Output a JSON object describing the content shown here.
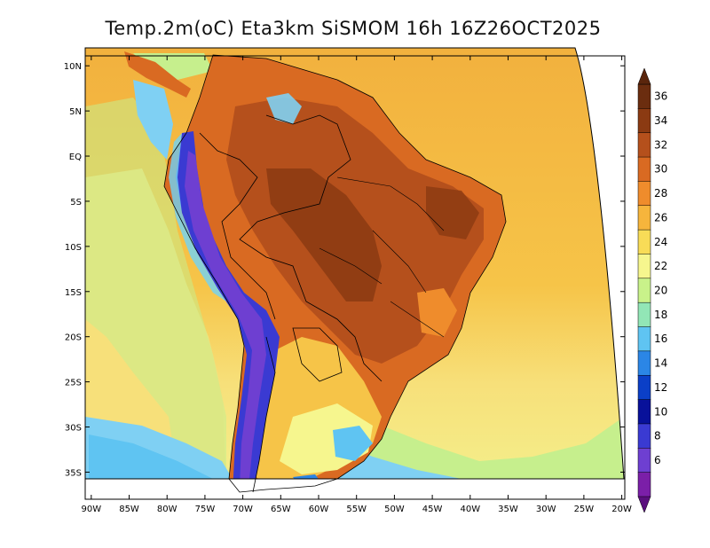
{
  "title": "Temp.2m(oC) Eta3km SiSMOM 16h 16Z26OCT2025",
  "y_ticks": [
    {
      "label": "10N",
      "lat": 10
    },
    {
      "label": "5N",
      "lat": 5
    },
    {
      "label": "EQ",
      "lat": 0
    },
    {
      "label": "5S",
      "lat": -5
    },
    {
      "label": "10S",
      "lat": -10
    },
    {
      "label": "15S",
      "lat": -15
    },
    {
      "label": "20S",
      "lat": -20
    },
    {
      "label": "25S",
      "lat": -25
    },
    {
      "label": "30S",
      "lat": -30
    },
    {
      "label": "35S",
      "lat": -35
    }
  ],
  "x_ticks": [
    {
      "label": "90W",
      "lon": -90
    },
    {
      "label": "85W",
      "lon": -85
    },
    {
      "label": "80W",
      "lon": -80
    },
    {
      "label": "75W",
      "lon": -75
    },
    {
      "label": "70W",
      "lon": -70
    },
    {
      "label": "65W",
      "lon": -65
    },
    {
      "label": "60W",
      "lon": -60
    },
    {
      "label": "55W",
      "lon": -55
    },
    {
      "label": "50W",
      "lon": -50
    },
    {
      "label": "45W",
      "lon": -45
    },
    {
      "label": "40W",
      "lon": -40
    },
    {
      "label": "35W",
      "lon": -35
    },
    {
      "label": "30W",
      "lon": -30
    },
    {
      "label": "25W",
      "lon": -25
    },
    {
      "label": "20W",
      "lon": -20
    }
  ],
  "colorbar": {
    "labels": [
      "36",
      "34",
      "32",
      "30",
      "28",
      "26",
      "24",
      "22",
      "20",
      "18",
      "16",
      "14",
      "12",
      "10",
      "8",
      "6"
    ],
    "colors": [
      "#6b2d0f",
      "#8b3a12",
      "#b5501c",
      "#d96a22",
      "#ef8c2c",
      "#f6b53c",
      "#f8dc57",
      "#f6f68e",
      "#c9f28a",
      "#92e6b6",
      "#5fc4f2",
      "#2b86e6",
      "#0b3fc7",
      "#08119a",
      "#3a3ad2",
      "#6e3fd1",
      "#7b1fa8"
    ],
    "top_color": "#5a250c",
    "bottom_color": "#5a0f7e"
  },
  "colors": {
    "ocean_warm": "#f2b13e",
    "ocean_mild": "#f7e07a",
    "ocean_cool": "#c6ef8d",
    "ocean_cold": "#7fd0f3",
    "land_hot": "#b5501c",
    "land_very_hot": "#8b3a12",
    "land_warm": "#d96a22",
    "andes_cold": "#3a3ad2",
    "andes_very_cold": "#6e3fd1",
    "andes_ice": "#6fd3f7"
  }
}
